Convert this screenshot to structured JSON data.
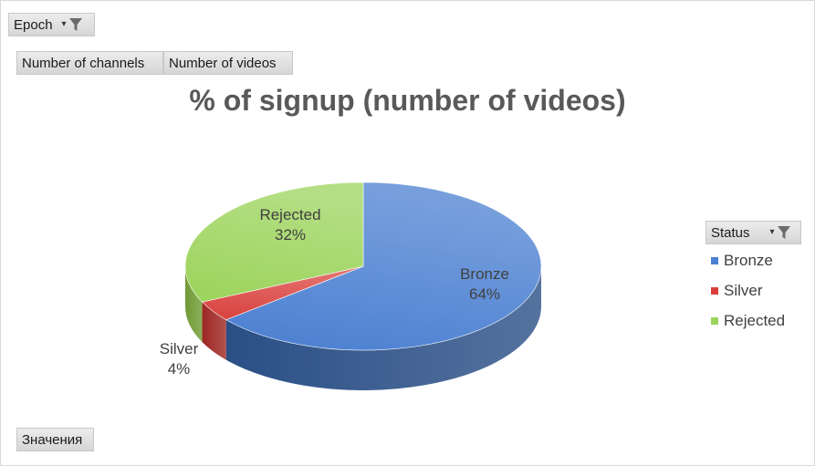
{
  "filters": {
    "epoch_label": "Epoch",
    "values_label": "Значения"
  },
  "tabs": [
    {
      "label": "Number of channels"
    },
    {
      "label": "Number of videos"
    }
  ],
  "legend": {
    "header": "Status",
    "items": [
      {
        "label": "Bronze",
        "color": "#4a7fd1"
      },
      {
        "label": "Silver",
        "color": "#d9403c"
      },
      {
        "label": "Rejected",
        "color": "#9bd35a"
      }
    ]
  },
  "chart_data": {
    "type": "pie",
    "title": "% of signup (number of videos)",
    "style": "3d-pie",
    "slices": [
      {
        "label": "Bronze",
        "value": 64,
        "display": "64%",
        "color": "#4a7fd1",
        "side_color": "#2a4f86"
      },
      {
        "label": "Silver",
        "value": 4,
        "display": "4%",
        "color": "#d9403c",
        "side_color": "#9e2623"
      },
      {
        "label": "Rejected",
        "value": 32,
        "display": "32%",
        "color": "#9bd35a",
        "side_color": "#6f9a34"
      }
    ],
    "legend_position": "right"
  }
}
